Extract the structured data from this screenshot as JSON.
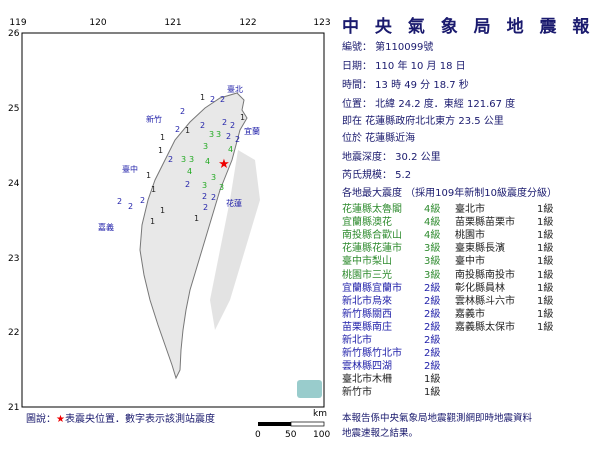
{
  "title": "中 央 氣 象 局 地 震 報 告",
  "info": [
    "編號： 第110099號",
    "日期： 110 年 10 月 18 日",
    "時間： 13 時 49 分 18.7 秒",
    "位置： 北緯 24.2 度．東經 121.67 度",
    "即在 花蓮縣政府北北東方 23.5 公里",
    "位於 花蓮縣近海",
    "地震深度： 30.2 公里",
    "芮氏規模： 5.2",
    "各地最大震度 （採用109年新制10級震度分級）"
  ],
  "intensity_left": [
    {
      "place": "花蓮縣太魯閣",
      "level": "4級",
      "color": "#2e8b2e"
    },
    {
      "place": "宜蘭縣澳花",
      "level": "4級",
      "color": "#2e8b2e"
    },
    {
      "place": "南投縣合歡山",
      "level": "4級",
      "color": "#2e8b2e"
    },
    {
      "place": "花蓮縣花蓮市",
      "level": "3級",
      "color": "#2e8b2e"
    },
    {
      "place": "臺中市梨山",
      "level": "3級",
      "color": "#2e8b2e"
    },
    {
      "place": "桃園市三光",
      "level": "3級",
      "color": "#2e8b2e"
    },
    {
      "place": "宜蘭縣宜蘭市",
      "level": "2級",
      "color": "#2222aa"
    },
    {
      "place": "新北市烏來",
      "level": "2級",
      "color": "#2222aa"
    },
    {
      "place": "新竹縣關西",
      "level": "2級",
      "color": "#2222aa"
    },
    {
      "place": "苗栗縣南庄",
      "level": "2級",
      "color": "#2222aa"
    },
    {
      "place": "新北市",
      "level": "2級",
      "color": "#2222aa"
    },
    {
      "place": "新竹縣竹北市",
      "level": "2級",
      "color": "#2222aa"
    },
    {
      "place": "雲林縣四湖",
      "level": "2級",
      "color": "#2222aa"
    },
    {
      "place": "臺北市木柵",
      "level": "1級",
      "color": "#222222"
    },
    {
      "place": "新竹市",
      "level": "1級",
      "color": "#222222"
    }
  ],
  "intensity_right": [
    {
      "place": "臺北市",
      "level": "1級"
    },
    {
      "place": "苗栗縣苗栗市",
      "level": "1級"
    },
    {
      "place": "桃園市",
      "level": "1級"
    },
    {
      "place": "臺東縣長濱",
      "level": "1級"
    },
    {
      "place": "臺中市",
      "level": "1級"
    },
    {
      "place": "南投縣南投市",
      "level": "1級"
    },
    {
      "place": "彰化縣員林",
      "level": "1級"
    },
    {
      "place": "雲林縣斗六市",
      "level": "1級"
    },
    {
      "place": "嘉義市",
      "level": "1級"
    },
    {
      "place": "嘉義縣太保市",
      "level": "1級"
    }
  ],
  "note": [
    "本報告係中央氣象局地震觀測網即時地震資料",
    "地震速報之結果。"
  ],
  "legend": {
    "prefix": "圖說：",
    "star": "★",
    "text": "表震央位置．數字表示該測站震度"
  },
  "scale": {
    "unit": "km",
    "ticks": [
      "0",
      "50",
      "100"
    ]
  },
  "map": {
    "lon_ticks": [
      "119",
      "120",
      "121",
      "122",
      "123"
    ],
    "lat_ticks": [
      "26",
      "25",
      "24",
      "23",
      "22",
      "21"
    ],
    "cities": [
      "臺北",
      "宜蘭",
      "新竹",
      "臺中",
      "花蓮",
      "嘉義"
    ]
  }
}
